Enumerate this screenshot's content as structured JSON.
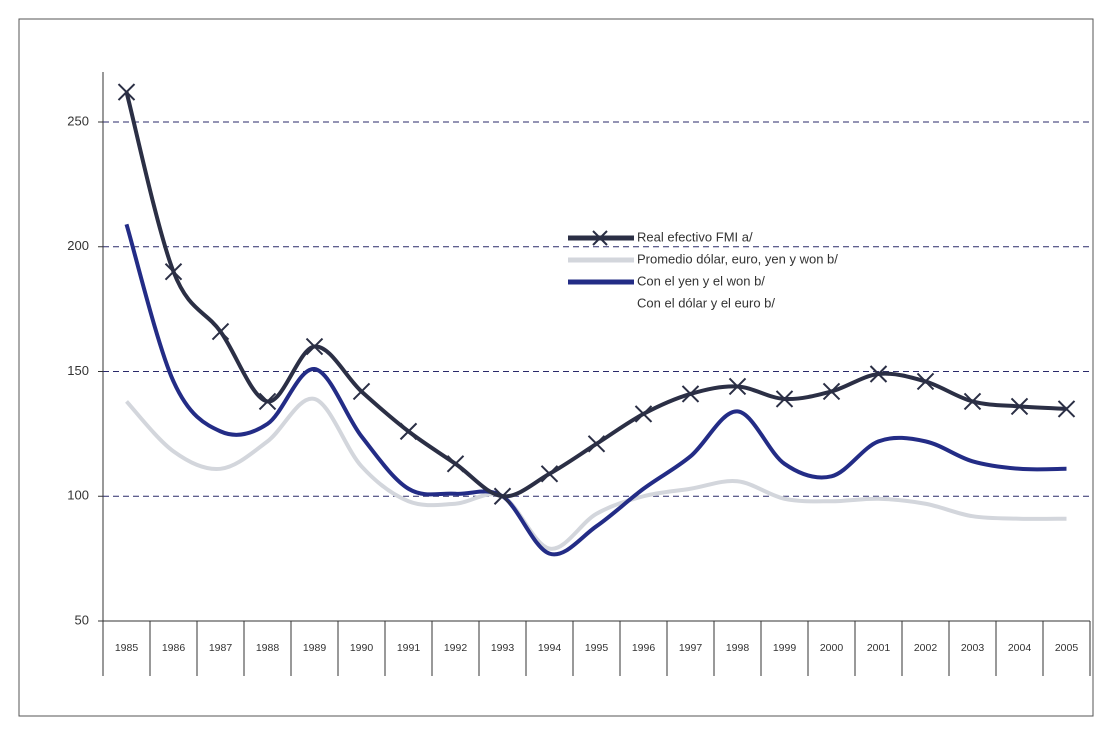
{
  "chart_data": {
    "type": "line",
    "categories": [
      "1985",
      "1986",
      "1987",
      "1988",
      "1989",
      "1990",
      "1991",
      "1992",
      "1993",
      "1994",
      "1995",
      "1996",
      "1997",
      "1998",
      "1999",
      "2000",
      "2001",
      "2002",
      "2003",
      "2004",
      "2005"
    ],
    "series": [
      {
        "name": "Real efectivo FMI a/",
        "color": "#2b2f45",
        "marker": "x",
        "values": [
          262,
          190,
          166,
          138,
          160,
          142,
          126,
          113,
          100,
          109,
          121,
          133,
          141,
          144,
          139,
          142,
          149,
          146,
          138,
          136,
          135
        ]
      },
      {
        "name": "Promedio dólar, euro, yen y won b/",
        "color": "#d3d6dc",
        "values": [
          138,
          118,
          111,
          122,
          139,
          112,
          98,
          97,
          100,
          79,
          93,
          100,
          103,
          106,
          99,
          98,
          99,
          97,
          92,
          91,
          91
        ]
      },
      {
        "name": "Con el yen y el won b/",
        "color": "#232c86",
        "values": [
          209,
          146,
          126,
          129,
          151,
          124,
          103,
          101,
          100,
          77,
          88,
          103,
          116,
          134,
          113,
          108,
          122,
          122,
          114,
          111,
          111
        ]
      },
      {
        "name": "Con el dólar y el euro b/",
        "color": "#ffffff",
        "values": [
          null,
          null,
          null,
          null,
          null,
          null,
          null,
          null,
          null,
          null,
          null,
          null,
          null,
          null,
          null,
          null,
          null,
          null,
          null,
          null,
          null
        ]
      }
    ],
    "ylim": [
      50,
      250
    ],
    "yticks": [
      50,
      100,
      150,
      200,
      250
    ],
    "grid": true,
    "grid_color": "#2a2a6a"
  }
}
